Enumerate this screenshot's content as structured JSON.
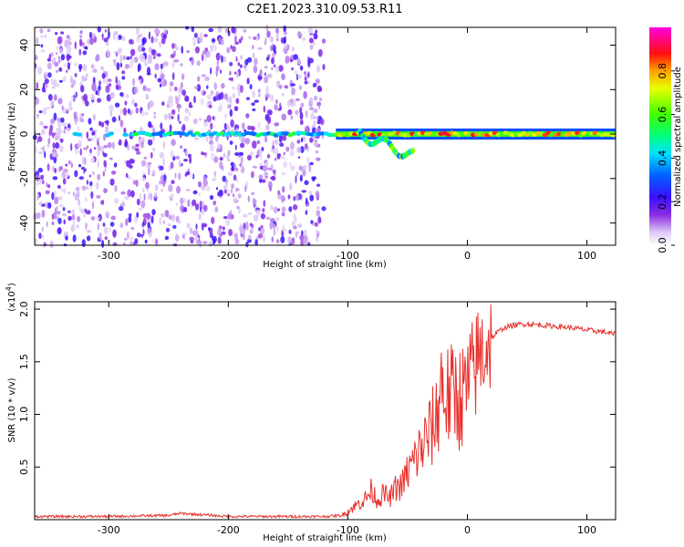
{
  "title": "C2E1.2023.310.09.53.R11",
  "chart_data": [
    {
      "type": "heatmap",
      "xlabel": "Height of straight line (km)",
      "ylabel": "Frequency (Hz)",
      "xlim": [
        -362,
        124
      ],
      "ylim": [
        -50,
        48
      ],
      "x_ticks": [
        -300,
        -200,
        -100,
        0,
        100
      ],
      "y_ticks": [
        -40,
        -20,
        0,
        20,
        40
      ],
      "colorbar": {
        "label": "Normalized spectral amplitude",
        "range": [
          0,
          1
        ],
        "ticks": [
          "0.0",
          "0.2",
          "0.4",
          "0.6",
          "0.8"
        ],
        "colormap": "rainbow (white-violet-blue-cyan-green-yellow-red-magenta)"
      },
      "features": [
        {
          "x_range": [
            -362,
            -120
          ],
          "frequency_range": [
            -50,
            48
          ],
          "amplitude": "low (0.05-0.25)",
          "description": "broadband noise"
        },
        {
          "x_range": [
            -362,
            -110
          ],
          "frequency": 0,
          "amplitude": "0.3-0.6"
        },
        {
          "x_range": [
            -110,
            124
          ],
          "frequency": 0,
          "amplitude": "0.6-0.9"
        },
        {
          "x_range": [
            -90,
            -45
          ],
          "frequency_range": [
            -12,
            6
          ],
          "amplitude": "0.3-0.7"
        }
      ]
    },
    {
      "type": "line",
      "xlabel": "Height of straight line (km)",
      "ylabel": "SNR (10 * v/v)",
      "y_multiplier": "(x10^4)",
      "xlim": [
        -362,
        124
      ],
      "ylim": [
        0,
        2.07
      ],
      "x_ticks": [
        -300,
        -200,
        -100,
        0,
        100
      ],
      "y_ticks": [
        0.5,
        1.0,
        1.5,
        2.0
      ],
      "series": [
        {
          "color": "#e8302c",
          "x": [
            -362,
            -300,
            -250,
            -240,
            -200,
            -150,
            -120,
            -105,
            -95,
            -85,
            -80,
            -75,
            -70,
            -65,
            -60,
            -55,
            -50,
            -45,
            -40,
            -35,
            -30,
            -25,
            -22,
            -20,
            -15,
            -10,
            -5,
            0,
            5,
            10,
            15,
            20,
            25,
            30,
            40,
            50,
            60,
            70,
            80,
            90,
            100,
            110,
            115,
            124
          ],
          "y": [
            0.03,
            0.03,
            0.04,
            0.06,
            0.03,
            0.03,
            0.03,
            0.04,
            0.12,
            0.2,
            0.28,
            0.18,
            0.25,
            0.2,
            0.3,
            0.32,
            0.45,
            0.55,
            0.65,
            0.75,
            0.85,
            1.0,
            1.35,
            1.2,
            1.15,
            1.2,
            1.15,
            1.25,
            1.4,
            1.55,
            1.65,
            1.72,
            1.78,
            1.82,
            1.85,
            1.86,
            1.85,
            1.84,
            1.83,
            1.82,
            1.8,
            1.79,
            1.78,
            1.76
          ]
        }
      ]
    }
  ]
}
